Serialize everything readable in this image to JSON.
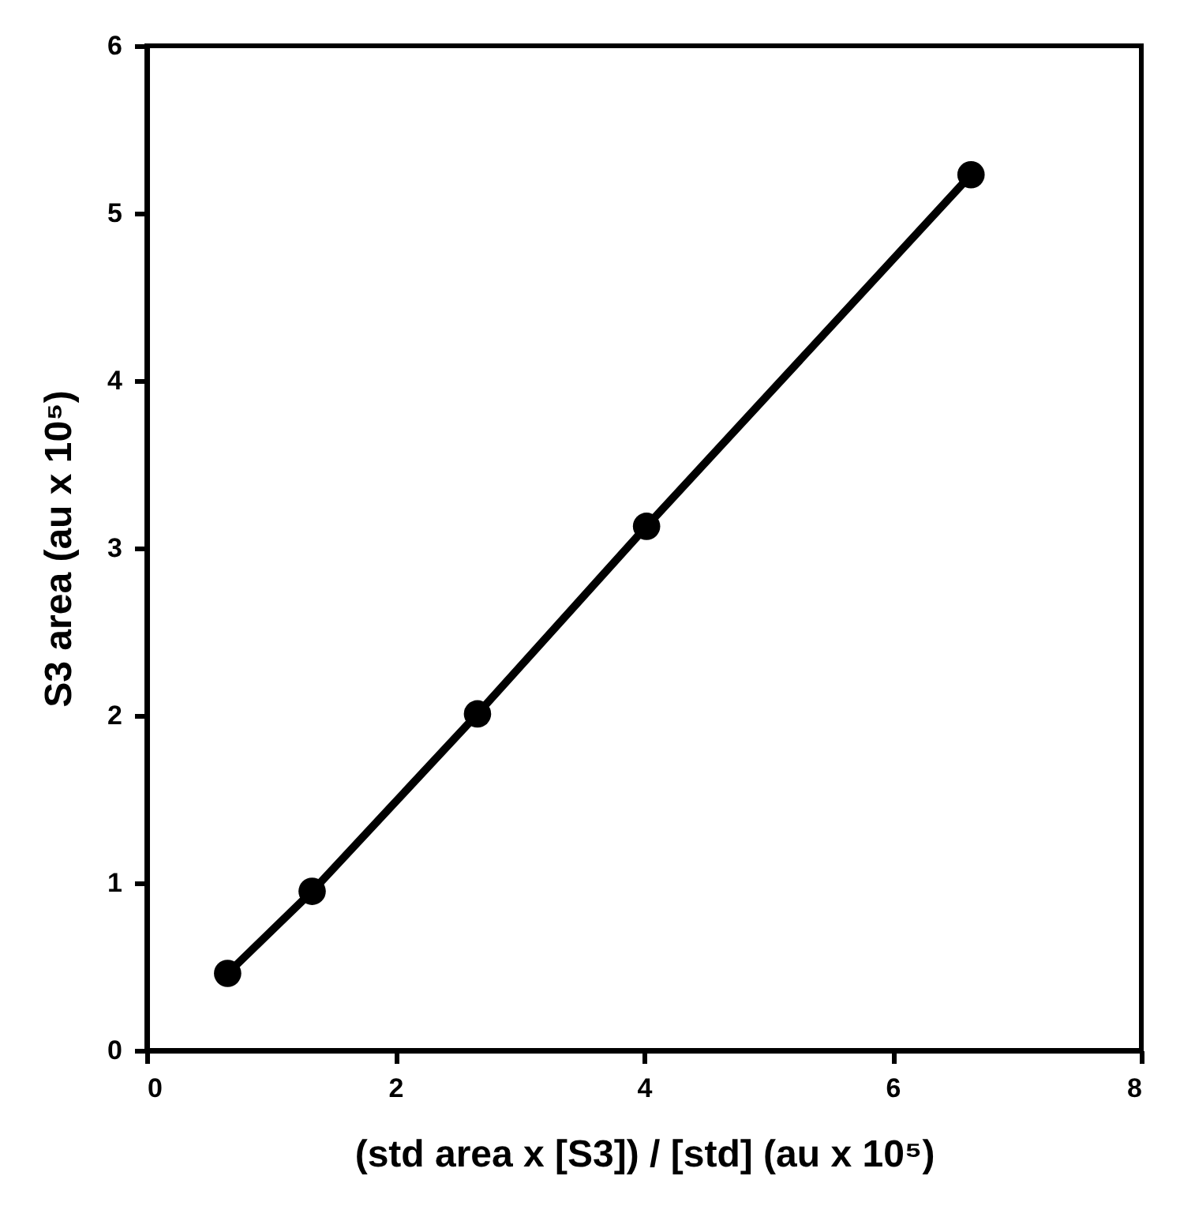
{
  "chart_data": {
    "type": "line",
    "xlabel": "(std area x [S3]) / [std] (au x 10⁵)",
    "ylabel": "S3 area (au x 10⁵)",
    "x": [
      0.65,
      1.33,
      2.66,
      4.02,
      6.63
    ],
    "series": [
      {
        "color": "#000000",
        "values": [
          0.46,
          0.95,
          2.01,
          3.13,
          5.23
        ]
      }
    ],
    "xlim": [
      0,
      8
    ],
    "xticks": [
      0,
      2,
      4,
      6,
      8
    ],
    "ylim": [
      0,
      6
    ],
    "yticks": [
      0,
      1,
      2,
      3,
      4,
      5,
      6
    ],
    "marker": "circle",
    "line_style": "solid",
    "grid": false,
    "legend": false
  }
}
